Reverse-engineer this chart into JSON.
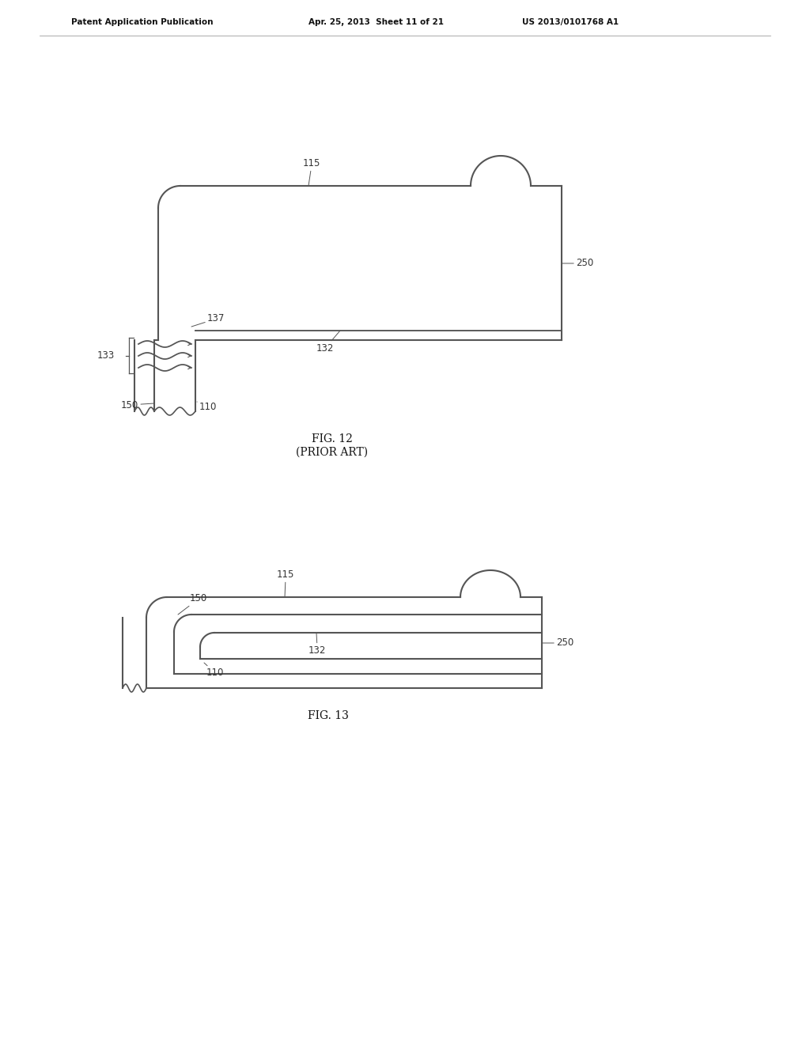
{
  "bg_color": "#ffffff",
  "line_color": "#555555",
  "line_width": 1.5,
  "header_left": "Patent Application Publication",
  "header_mid": "Apr. 25, 2013  Sheet 11 of 21",
  "header_right": "US 2013/0101768 A1",
  "fig12_title": "FIG. 12",
  "fig12_subtitle": "(PRIOR ART)",
  "fig13_title": "FIG. 13",
  "label_color": "#333333",
  "label_fontsize": 8.5,
  "title_fontsize": 10,
  "annot_lw": 0.7
}
